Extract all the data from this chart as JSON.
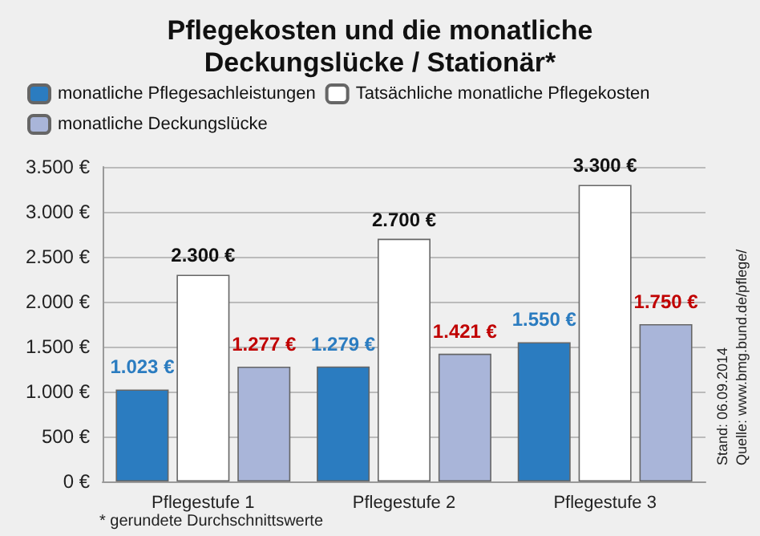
{
  "chart_data": {
    "type": "bar",
    "title": "Pflegekosten und die monatliche\nDeckungslücke / Stationär*",
    "categories": [
      "Pflegestufe 1",
      "Pflegestufe 2",
      "Pflegestufe 3"
    ],
    "series": [
      {
        "name": "monatliche Pflegesachleistungen",
        "color": "#2b7cc0",
        "values": [
          1023,
          1279,
          1550
        ],
        "value_labels": [
          "1.023 €",
          "1.279 €",
          "1.550 €"
        ]
      },
      {
        "name": "Tatsächliche monatliche Pflegekosten",
        "color": "#ffffff",
        "values": [
          2300,
          2700,
          3300
        ],
        "value_labels": [
          "2.300 €",
          "2.700 €",
          "3.300 €"
        ]
      },
      {
        "name": "monatliche Deckungslücke",
        "color": "#a9b5d9",
        "values": [
          1277,
          1421,
          1750
        ],
        "value_labels": [
          "1.277 €",
          "1.421 €",
          "1.750 €"
        ]
      }
    ],
    "ylim": [
      0,
      3500
    ],
    "yticks": [
      {
        "value": 0,
        "label": "0 €"
      },
      {
        "value": 500,
        "label": "500 €"
      },
      {
        "value": 1000,
        "label": "1.000 €"
      },
      {
        "value": 1500,
        "label": "1.500 €"
      },
      {
        "value": 2000,
        "label": "2.000 €"
      },
      {
        "value": 2500,
        "label": "2.500 €"
      },
      {
        "value": 3000,
        "label": "3.000 €"
      },
      {
        "value": 3500,
        "label": "3.500 €"
      }
    ],
    "grid": "y",
    "legend": "top",
    "annotations": [
      "* gerundete Durchschnittswerte",
      "Quelle: www.bmg.bund.de/pflege/",
      "Stand: 06.09.2014"
    ]
  }
}
